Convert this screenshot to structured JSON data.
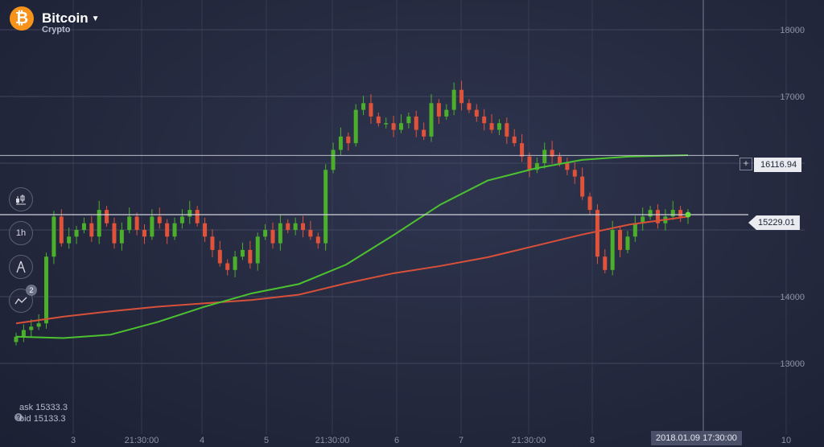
{
  "header": {
    "logo_symbol": "₿",
    "asset_name": "Bitcoin",
    "category": "Crypto",
    "dropdown_icon": "caret-down-icon"
  },
  "tools": [
    {
      "name": "candle-chart-type-icon",
      "label": ""
    },
    {
      "name": "timeframe-button",
      "label": "1h"
    },
    {
      "name": "drawing-tool-icon",
      "label": ""
    },
    {
      "name": "indicators-icon",
      "label": "",
      "badge": "2"
    }
  ],
  "quote": {
    "ask": "ask 15333.3",
    "bid": "bid 15133.3"
  },
  "price_labels": {
    "current": "15229.01",
    "crosshair": "16116.94"
  },
  "crosshair_date": "2018.01.09 17:30:00",
  "colors": {
    "up": "#4caf2c",
    "down": "#e0533a",
    "ma_fast": "#4cc230",
    "ma_slow": "#d9503a"
  },
  "chart_data": {
    "type": "candlestick",
    "title": "Bitcoin",
    "y_ticks": [
      "18000",
      "17000",
      "14000",
      "13000"
    ],
    "x_ticks": [
      "3",
      "21:30:00",
      "4",
      "5",
      "21:30:00",
      "6",
      "7",
      "21:30:00",
      "8",
      "10"
    ],
    "ylim": [
      12500,
      18200
    ],
    "current_price": 15229.01,
    "crosshair_price": 16116.94,
    "close_series": [
      13400,
      13500,
      13550,
      13600,
      14600,
      15200,
      14800,
      14900,
      15000,
      15100,
      14900,
      15300,
      15100,
      14800,
      15000,
      15200,
      15000,
      14900,
      15200,
      15100,
      14900,
      15100,
      15200,
      15300,
      15100,
      14900,
      14700,
      14500,
      14400,
      14600,
      14700,
      14500,
      14900,
      15000,
      14800,
      15100,
      15000,
      15100,
      15000,
      14900,
      14800,
      15900,
      16200,
      16400,
      16300,
      16800,
      16900,
      16700,
      16600,
      16600,
      16500,
      16600,
      16700,
      16500,
      16400,
      16900,
      16700,
      16800,
      17100,
      16900,
      16800,
      16700,
      16600,
      16500,
      16600,
      16400,
      16300,
      16100,
      15900,
      16000,
      16200,
      16100,
      16000,
      15900,
      15800,
      15500,
      15300,
      14600,
      14400,
      15000,
      14700,
      14900,
      15100,
      15200,
      15300,
      15100,
      15200,
      15300,
      15200,
      15229
    ],
    "ma_fast": [
      [
        0,
        13400
      ],
      [
        60,
        13380
      ],
      [
        120,
        13430
      ],
      [
        180,
        13620
      ],
      [
        240,
        13850
      ],
      [
        300,
        14050
      ],
      [
        360,
        14190
      ],
      [
        420,
        14480
      ],
      [
        480,
        14920
      ],
      [
        540,
        15380
      ],
      [
        600,
        15740
      ],
      [
        660,
        15920
      ],
      [
        720,
        16050
      ],
      [
        780,
        16100
      ],
      [
        855,
        16120
      ]
    ],
    "ma_slow": [
      [
        0,
        13600
      ],
      [
        60,
        13700
      ],
      [
        120,
        13780
      ],
      [
        180,
        13850
      ],
      [
        240,
        13900
      ],
      [
        300,
        13950
      ],
      [
        360,
        14030
      ],
      [
        420,
        14200
      ],
      [
        480,
        14350
      ],
      [
        540,
        14460
      ],
      [
        600,
        14590
      ],
      [
        660,
        14760
      ],
      [
        720,
        14930
      ],
      [
        780,
        15080
      ],
      [
        855,
        15200
      ]
    ]
  }
}
